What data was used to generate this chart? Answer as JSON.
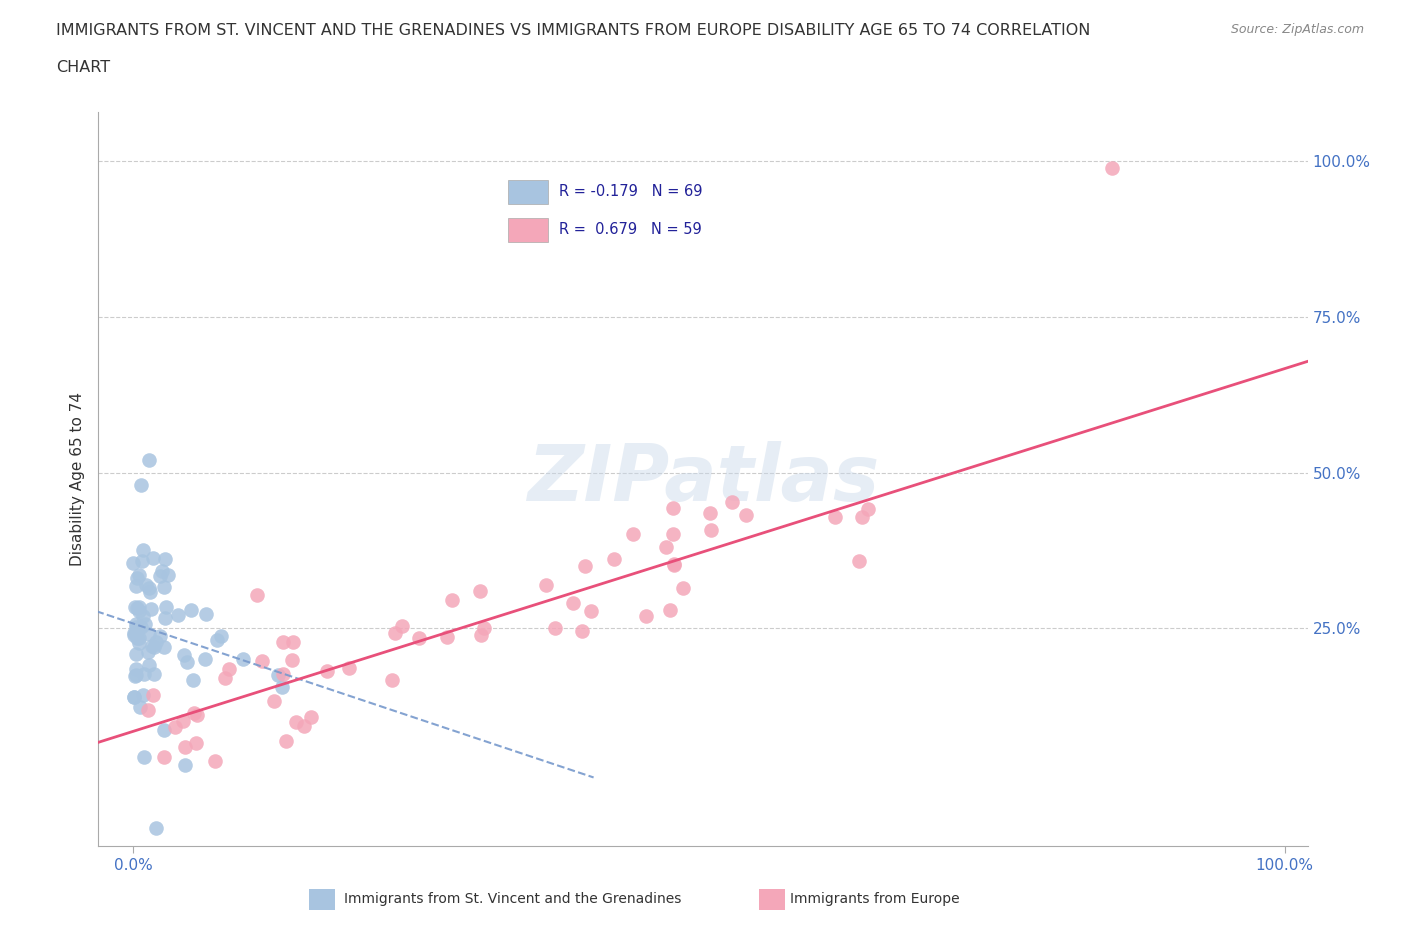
{
  "title_line1": "IMMIGRANTS FROM ST. VINCENT AND THE GRENADINES VS IMMIGRANTS FROM EUROPE DISABILITY AGE 65 TO 74 CORRELATION",
  "title_line2": "CHART",
  "source": "Source: ZipAtlas.com",
  "ylabel": "Disability Age 65 to 74",
  "legend_label1": "Immigrants from St. Vincent and the Grenadines",
  "legend_label2": "Immigrants from Europe",
  "legend_r1": "R = -0.179",
  "legend_n1": "N = 69",
  "legend_r2": "R =  0.679",
  "legend_n2": "N = 59",
  "color_blue": "#a8c4e0",
  "color_pink": "#f4a7b9",
  "color_blue_line": "#7799cc",
  "color_pink_line": "#e8507a",
  "watermark": "ZIPatlas",
  "n_blue": 69,
  "n_pink": 59,
  "ylim_min": -10,
  "ylim_max": 108,
  "xlim_min": -3,
  "xlim_max": 102
}
